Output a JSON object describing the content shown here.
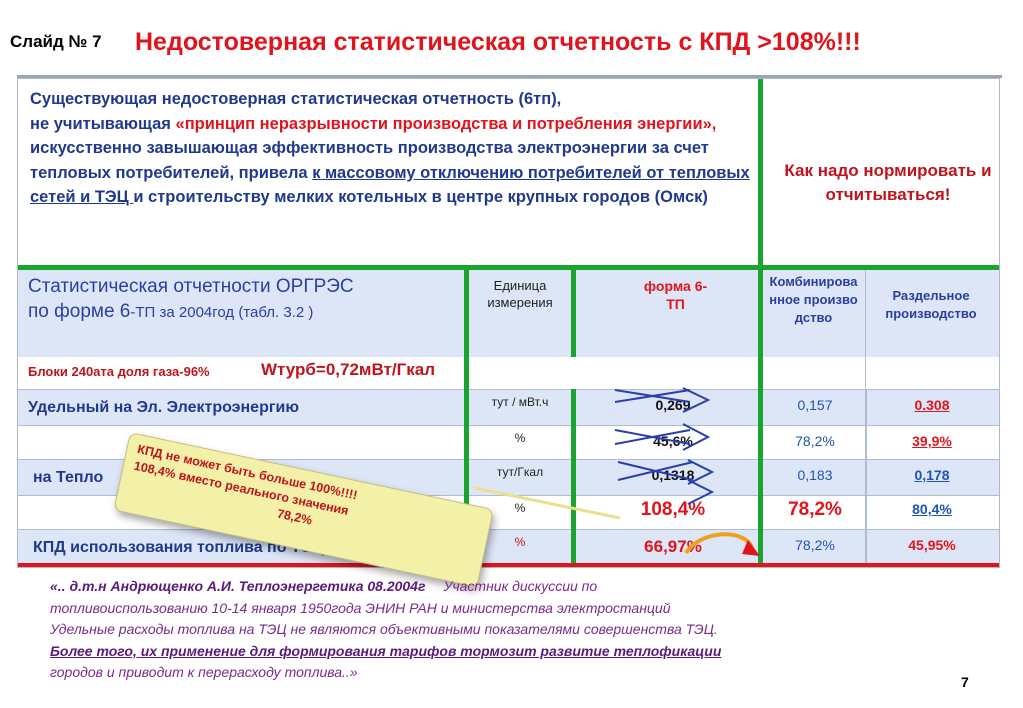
{
  "slide_number": "Слайд № 7",
  "title": "Недостоверная  статистическая отчетность  с  КПД >108%!!!",
  "intro": {
    "p1": "Существующая   недостоверная статистическая отчетность  (6тп),",
    "p2": "не учитывающая ",
    "p2_red": "«принцип неразрывности  производства и потребления  энергии»,",
    "p3": "  искусственно  завышающая эффективность  производства  электроэнергии  за счет  тепловых потребителей,   привела ",
    "p3_ul": "к массовому  отключению  потребителей от  тепловых сетей   и ТЭЦ ",
    "p4": "  и строительству   мелких котельных  в центре  крупных  городов (Омск)"
  },
  "right_note": "Как надо нормировать и отчитываться!",
  "header": {
    "stat_title_a": "Статистическая   отчетности ОРГРЭС",
    "stat_title_b": "по форме 6",
    "stat_title_c": "-ТП  за 2004год (табл. 3.2 )",
    "unit_col": "Единица измерения",
    "form_col": "форма 6-ТП",
    "combined_col": "Комбинированное производство",
    "separate_col": "Раздельное производство"
  },
  "blocks_row": {
    "label": "Блоки 240ата  доля  газа-96%",
    "formula": "Wтурб=0,72мВт/Гкал"
  },
  "rows": [
    {
      "label": "Удельный  на  Эл. Электроэнергию",
      "unit": "тут / мВт.ч",
      "form": "0,269",
      "comb": "0,157",
      "sep": "0.308"
    },
    {
      "label": "",
      "unit": "%",
      "form": "45,6%",
      "comb": "78,2%",
      "sep": "39,9%"
    },
    {
      "label": "на Тепло",
      "unit": "тут/Гкал",
      "form": "0,1318",
      "comb": "0,183",
      "sep": "0,178"
    },
    {
      "label": "",
      "unit": "%",
      "form": "108,4%",
      "comb": "78,2%",
      "sep": "80,4%"
    },
    {
      "label": "КПД  использования топлива  по ТЭЦ",
      "unit": "%",
      "form": "66,97%",
      "comb": "78,2%",
      "sep": "45,95%"
    }
  ],
  "callout": {
    "line1": "КПД  не может   быть больше  100%!!!!",
    "line2": "108,4%   вместо  реального  значения",
    "line3": "78,2%"
  },
  "quote": {
    "l1a": "«.. д.т.н  Андрющенко А.И.   Теплоэнергетика  08.2004г",
    "l1b": "Участник  дискуссии  по",
    "l2": "топливоиспользованию  10-14  января  1950года  ЭНИН РАН и министерства  электростанций",
    "l3": "Удельные расходы топлива на ТЭЦ не являются объективными показателями совершенства ТЭЦ.",
    "l4": "Более того, их применение для формирования  тарифов  тормозит   развитие теплофикации",
    "l5": "городов и приводит к перерасходу топлива..»"
  },
  "page_number": "7",
  "colors": {
    "title_red": "#e0141c",
    "text_blue": "#1f3a8c",
    "green": "#1aa531",
    "row_blue": "#dde6f7",
    "callout": "#f3f0a8"
  }
}
